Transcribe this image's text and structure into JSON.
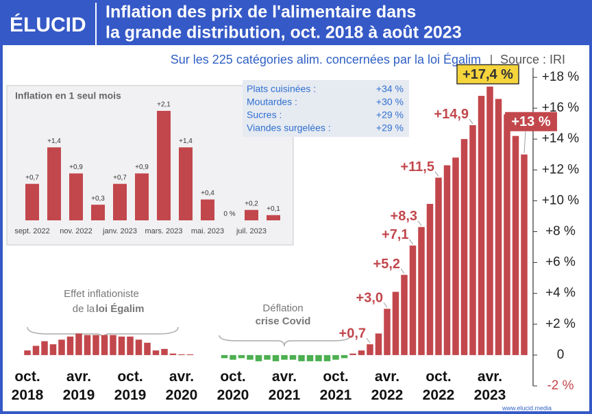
{
  "logo": "ÉLUCID",
  "website": "www.elucid.media",
  "chart_data": [
    {
      "type": "bar",
      "title": [
        "Inflation des prix de l'alimentaire dans",
        "la grande distribution, oct. 2018 à août 2023"
      ],
      "subtitle": "Sur les 225 catégories alim. concernées par la loi Égalim",
      "source": "Source : IRI",
      "categories": [
        "oct. 2018",
        null,
        null,
        null,
        null,
        null,
        "avr. 2019",
        null,
        null,
        null,
        null,
        null,
        "oct. 2019",
        null,
        null,
        null,
        null,
        null,
        "avr. 2020",
        null,
        null,
        null,
        null,
        null,
        "oct. 2020",
        null,
        null,
        null,
        null,
        null,
        "avr. 2021",
        null,
        null,
        null,
        null,
        null,
        "oct. 2021",
        null,
        null,
        null,
        null,
        null,
        "avr. 2022",
        null,
        null,
        null,
        null,
        null,
        "oct. 2022",
        null,
        null,
        null,
        null,
        null,
        "avr. 2023",
        null,
        null,
        null,
        null
      ],
      "values": [
        0.3,
        0.6,
        0.9,
        0.7,
        1.0,
        1.2,
        1.4,
        1.3,
        1.3,
        1.3,
        1.3,
        1.2,
        1.2,
        1.0,
        0.8,
        0.3,
        0.4,
        0.1,
        0.05,
        0.05,
        0,
        0,
        0,
        -0.2,
        -0.3,
        -0.2,
        -0.3,
        -0.4,
        -0.3,
        -0.4,
        -0.3,
        -0.3,
        -0.4,
        -0.4,
        -0.4,
        -0.4,
        -0.3,
        -0.2,
        0.1,
        0.3,
        0.7,
        1.4,
        3.0,
        4.1,
        5.2,
        7.1,
        8.3,
        9.8,
        11.5,
        12.3,
        12.8,
        14.0,
        14.9,
        16.8,
        17.4,
        16.6,
        15.6,
        14.2,
        13.0
      ],
      "value_labels": [
        null,
        null,
        null,
        null,
        null,
        null,
        null,
        null,
        null,
        null,
        null,
        null,
        null,
        null,
        null,
        null,
        null,
        null,
        null,
        null,
        null,
        null,
        null,
        null,
        null,
        null,
        null,
        null,
        null,
        null,
        null,
        null,
        null,
        null,
        null,
        null,
        null,
        null,
        null,
        null,
        "+0,7",
        null,
        "+3,0",
        null,
        "+5,2",
        "+7,1",
        "+8,3",
        null,
        "+11,5",
        null,
        null,
        null,
        "+14,9",
        null,
        "+17,4 %",
        null,
        null,
        null,
        "+13 %"
      ],
      "color": "#c2474c",
      "negative_color": "#4caf50",
      "ylim": [
        -2,
        18
      ],
      "yticks": [
        {
          "value": -2,
          "label": "-2 %"
        },
        0,
        {
          "value": 2,
          "label": "+2 %"
        },
        {
          "value": 4,
          "label": "+4 %"
        },
        {
          "value": 6,
          "label": "+6 %"
        },
        {
          "value": 8,
          "label": "+8 %"
        },
        {
          "value": 10,
          "label": "+10 %"
        },
        {
          "value": 12,
          "label": "+12 %"
        },
        {
          "value": 14,
          "label": "+14 %"
        },
        {
          "value": 16,
          "label": "+16 %"
        },
        {
          "value": 18,
          "label": "+18 %"
        }
      ],
      "annotations": [
        "Effet inflationiste",
        "de la",
        "loi Égalim",
        "Déflation",
        "crise Covid"
      ],
      "highlights": {
        "names": [
          "Plats cuisinées :",
          "Moutardes :",
          "Sucres :",
          "Viandes surgelées :"
        ],
        "values": [
          34,
          30,
          29,
          29
        ],
        "value_labels": [
          "+34 %",
          "+30 %",
          "+29 %",
          "+29 %"
        ]
      }
    },
    {
      "type": "bar",
      "title": "Inflation en 1 seul mois",
      "categories": [
        "sept. 2022",
        null,
        "nov. 2022",
        null,
        "janv. 2023",
        null,
        "mars. 2023",
        null,
        "mai. 2023",
        null,
        "juil. 2023",
        null
      ],
      "values": [
        0.7,
        1.4,
        0.9,
        0.3,
        0.7,
        0.9,
        2.1,
        1.4,
        0.4,
        0,
        0.2,
        0.1
      ],
      "value_labels": [
        "+0,7",
        "+1,4",
        "+0,9",
        "+0,3",
        "+0,7",
        "+0,9",
        "+2,1",
        "+1,4",
        "+0,4",
        "0 %",
        "+0,2",
        "+0,1"
      ],
      "color": "#c2474c"
    }
  ]
}
